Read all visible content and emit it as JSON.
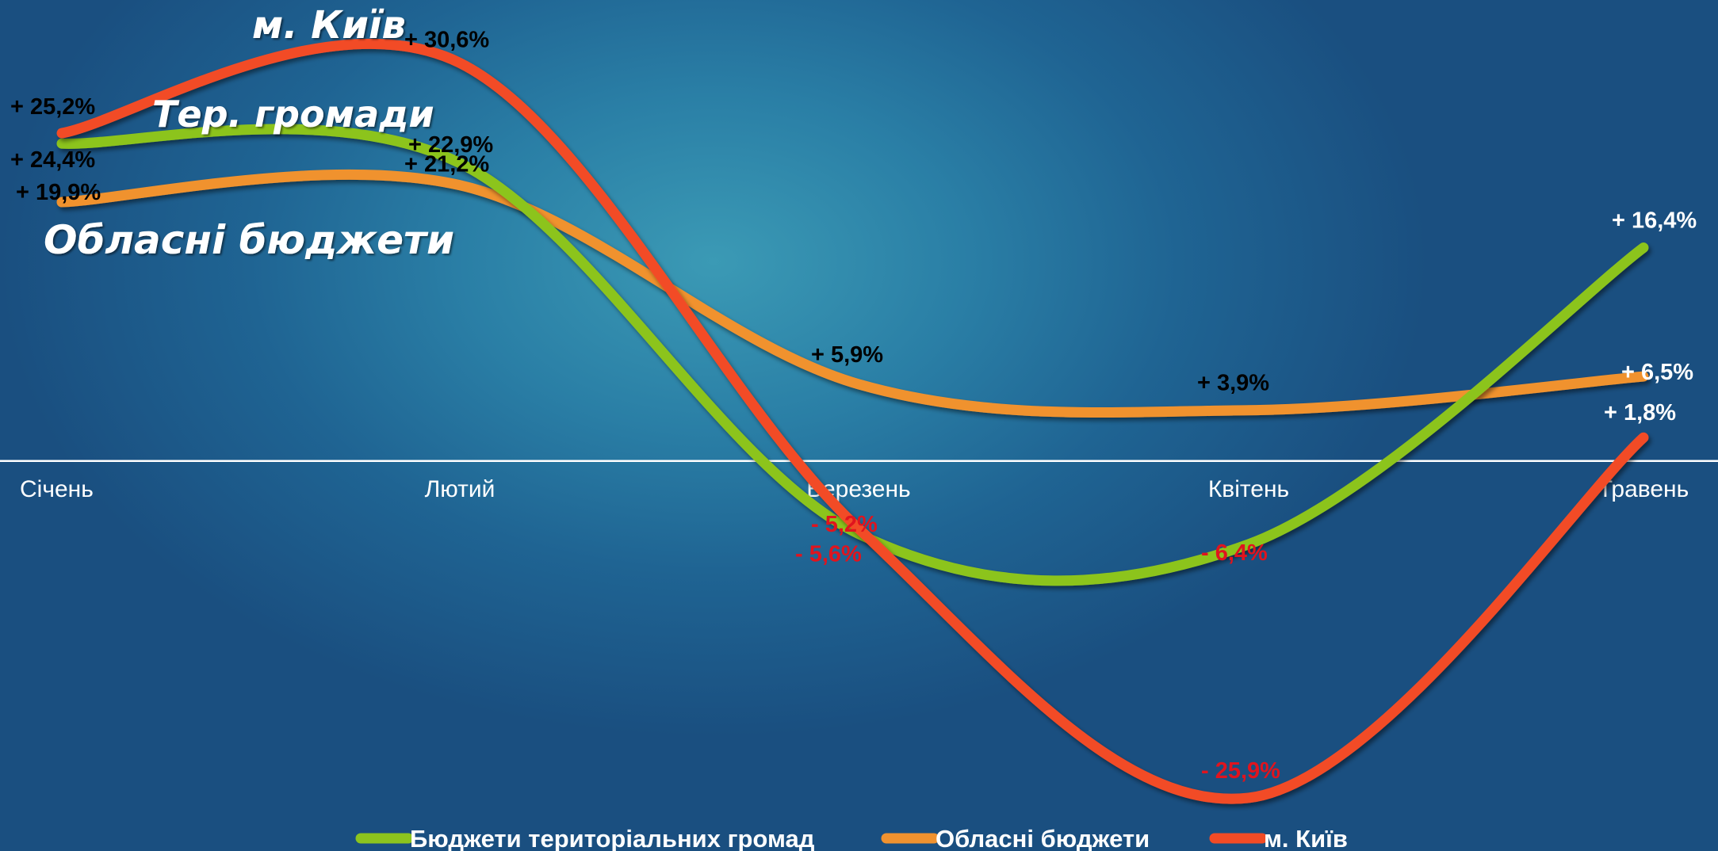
{
  "chart_data": {
    "type": "line",
    "categories": [
      "Січень",
      "Лютий",
      "Березень",
      "Квітень",
      "Травень"
    ],
    "series": [
      {
        "name": "Бюджети територіальних громад",
        "color": "#8cc41e",
        "values": [
          24.4,
          22.9,
          -5.6,
          -6.4,
          16.4
        ],
        "labels": [
          "+ 24,4%",
          "+ 22,9%",
          "- 5,6%",
          "- 6,4%",
          "+ 16,4%"
        ],
        "callout": "Тер. громади"
      },
      {
        "name": "Обласні бюджети",
        "color": "#f0922f",
        "values": [
          19.9,
          21.2,
          5.9,
          3.9,
          6.5
        ],
        "labels": [
          "+ 19,9%",
          "+ 21,2%",
          "+ 5,9%",
          "+ 3,9%",
          "+ 6,5%"
        ],
        "callout": "Обласні бюджети"
      },
      {
        "name": "м. Київ",
        "color": "#f24b25",
        "values": [
          25.2,
          30.6,
          -5.2,
          -25.9,
          1.8
        ],
        "labels": [
          "+ 25,2%",
          "+ 30,6%",
          "- 5,2%",
          "- 25,9%",
          "+ 1,8%"
        ],
        "callout": "м. Київ"
      }
    ],
    "ylim": [
      -27,
      33
    ],
    "zero_line": true,
    "grid": false,
    "legend_position": "bottom",
    "colors": {
      "positive_label": "#000000",
      "negative_label": "#e0141e",
      "right_label": "#ffffff",
      "category_label": "#ffffff",
      "zero_line": "#ffffff"
    }
  }
}
